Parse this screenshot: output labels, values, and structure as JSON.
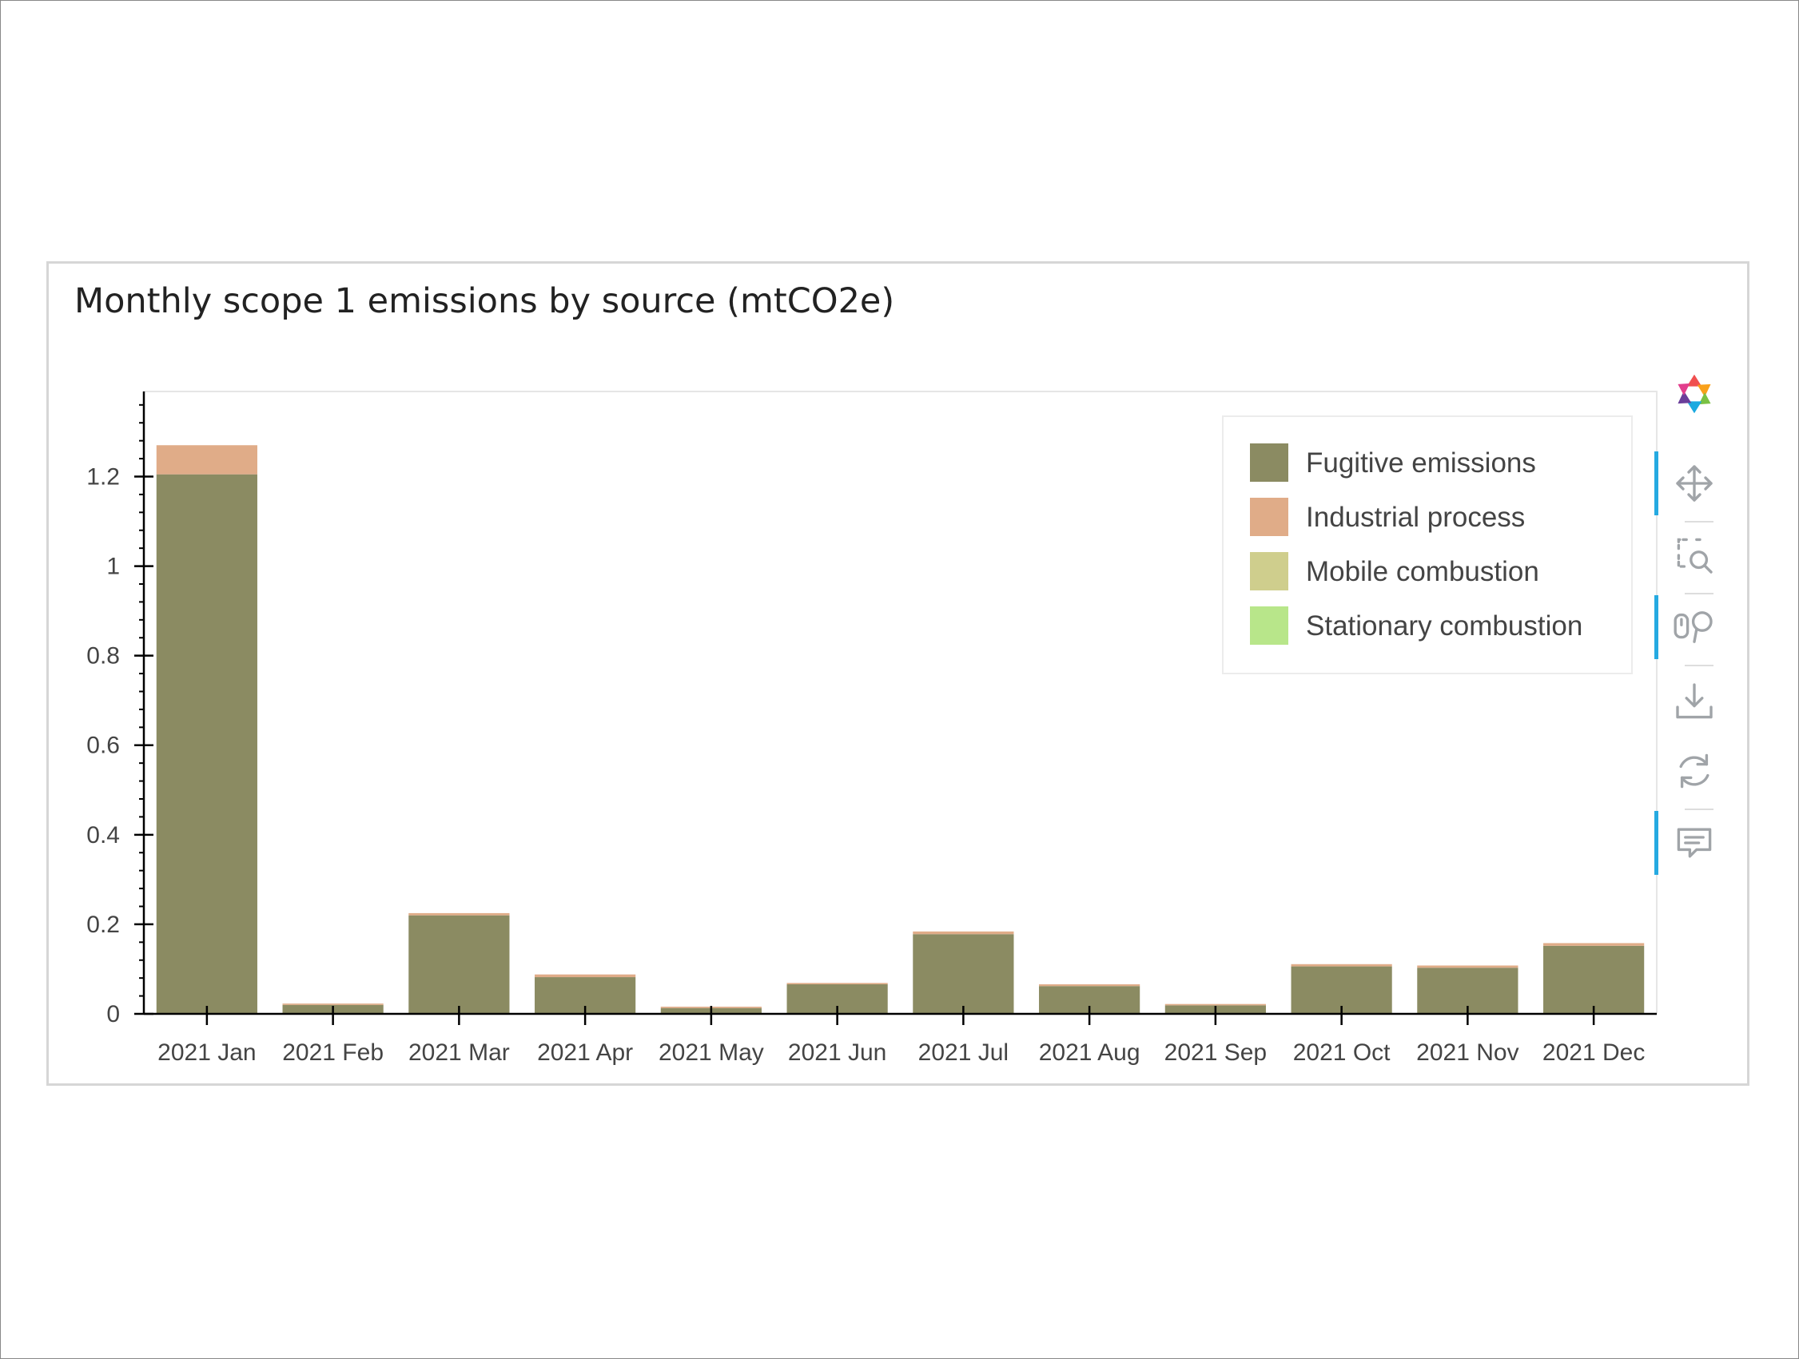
{
  "card": {
    "title": "Monthly scope 1 emissions by source (mtCO2e)"
  },
  "chart_data": {
    "type": "bar",
    "stacked": true,
    "categories": [
      "2021 Jan",
      "2021 Feb",
      "2021 Mar",
      "2021 Apr",
      "2021 May",
      "2021 Jun",
      "2021 Jul",
      "2021 Aug",
      "2021 Sep",
      "2021 Oct",
      "2021 Nov",
      "2021 Dec"
    ],
    "series": [
      {
        "name": "Fugitive emissions",
        "color": "#8b8b62",
        "values": [
          1.205,
          0.02,
          0.22,
          0.082,
          0.013,
          0.066,
          0.178,
          0.062,
          0.019,
          0.106,
          0.103,
          0.152
        ]
      },
      {
        "name": "Industrial process",
        "color": "#e0ac88",
        "values": [
          0.065,
          0.003,
          0.005,
          0.006,
          0.003,
          0.003,
          0.006,
          0.004,
          0.003,
          0.005,
          0.005,
          0.006
        ]
      },
      {
        "name": "Mobile combustion",
        "color": "#cfce8d",
        "values": [
          0,
          0,
          0,
          0,
          0,
          0,
          0,
          0,
          0,
          0,
          0,
          0
        ]
      },
      {
        "name": "Stationary combustion",
        "color": "#b8e68a",
        "values": [
          0,
          0,
          0,
          0,
          0,
          0,
          0,
          0,
          0,
          0,
          0,
          0
        ]
      }
    ],
    "yticks": [
      0,
      0.2,
      0.4,
      0.6,
      0.8,
      1,
      1.2
    ],
    "ytick_labels": [
      "0",
      "0.2",
      "0.4",
      "0.6",
      "0.8",
      "1",
      "1.2"
    ],
    "ylim": [
      0,
      1.39
    ],
    "xlabel": "",
    "ylabel": "",
    "legend_position": "top-right",
    "grid": false
  },
  "toolbar": {
    "logo_icon": "bokeh-logo-icon",
    "tools": [
      {
        "icon": "pan-icon",
        "active": true
      },
      {
        "icon": "box-zoom-icon",
        "active": false
      },
      {
        "icon": "wheel-zoom-icon",
        "active": true
      },
      {
        "icon": "save-icon",
        "active": false
      },
      {
        "icon": "reset-icon",
        "active": false
      },
      {
        "icon": "hover-icon",
        "active": true
      }
    ],
    "active_color": "#26aae1",
    "icon_color": "#a0a4a8"
  }
}
